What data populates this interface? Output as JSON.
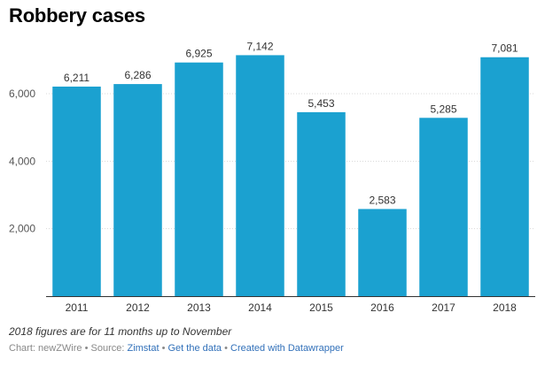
{
  "title": "Robbery cases",
  "chart_data": {
    "type": "bar",
    "categories": [
      "2011",
      "2012",
      "2013",
      "2014",
      "2015",
      "2016",
      "2017",
      "2018"
    ],
    "values": [
      6211,
      6286,
      6925,
      7142,
      5453,
      2583,
      5285,
      7081
    ],
    "data_labels": [
      "6,211",
      "6,286",
      "6,925",
      "7,142",
      "5,453",
      "2,583",
      "5,285",
      "7,081"
    ],
    "yticks": [
      2000,
      4000,
      6000
    ],
    "ytick_labels": [
      "2,000",
      "4,000",
      "6,000"
    ],
    "ylim": [
      0,
      7300
    ],
    "bar_color": "#1ba1d0",
    "grid": true,
    "title": "Robbery cases",
    "xlabel": "",
    "ylabel": ""
  },
  "note": "2018 figures are for 11 months up to November",
  "footer": {
    "chart_by": "Chart: newZWire",
    "sep1": " • ",
    "source_label": "Source: ",
    "source_link": "Zimstat",
    "sep2": " • ",
    "get_data": "Get the data",
    "sep3": " • ",
    "created_with": "Created with Datawrapper"
  }
}
